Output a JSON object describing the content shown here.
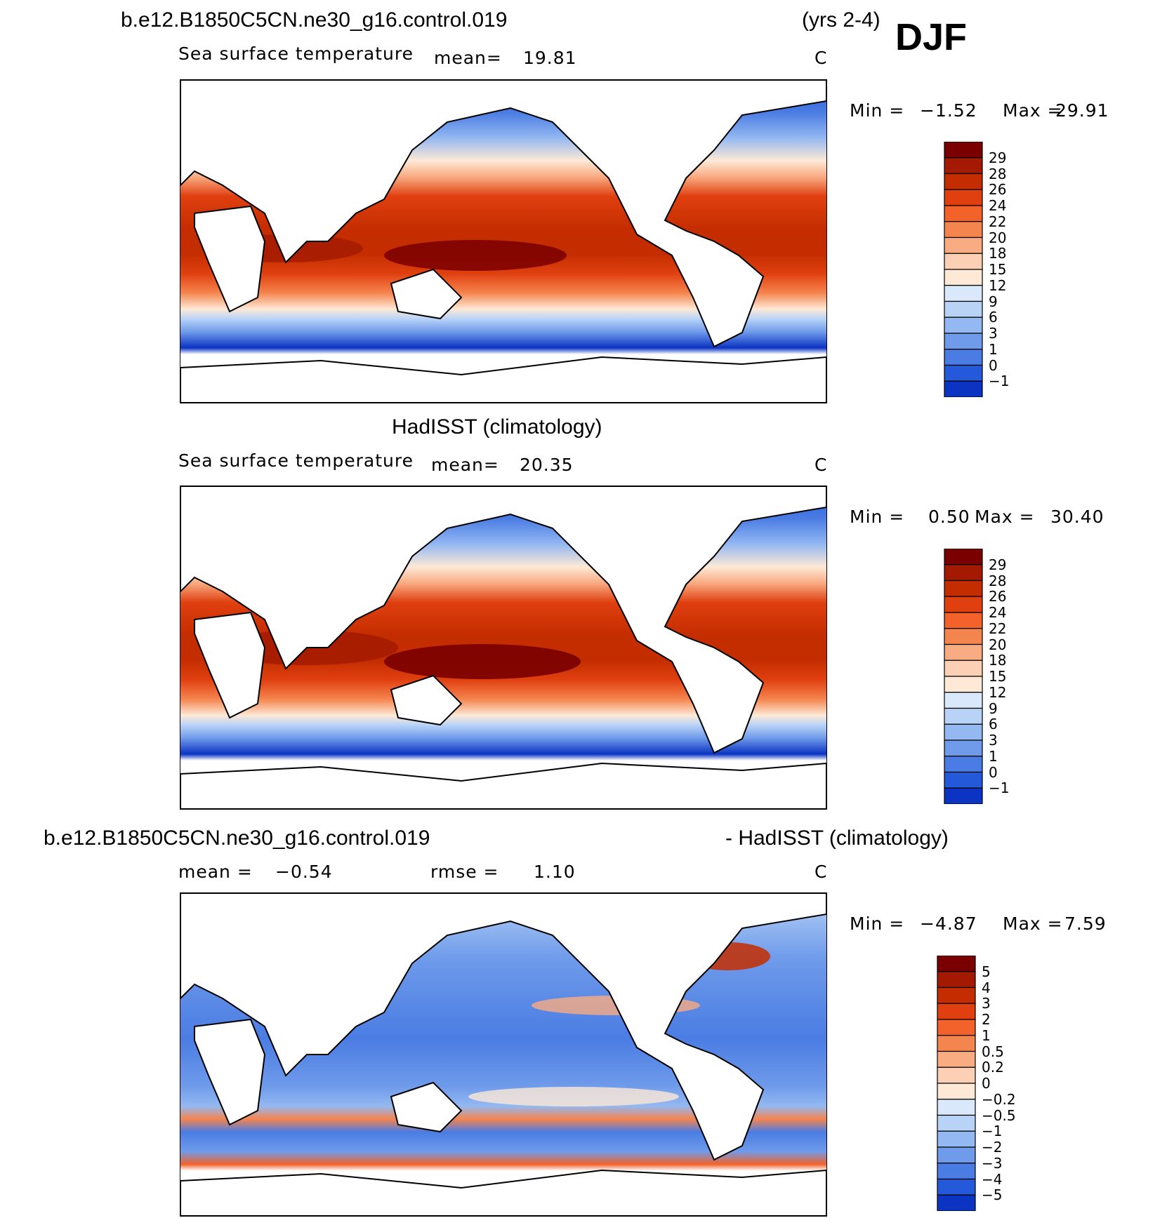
{
  "header": {
    "run_name": "b.e12.B1850C5CN.ne30_g16.control.019",
    "years": "(yrs 2-4)",
    "season": "DJF"
  },
  "panel1": {
    "field": "Sea surface temperature",
    "mean_label": "mean=",
    "mean_value": "19.81",
    "units": "C",
    "min_label": "Min =",
    "min_value": "−1.52",
    "max_label": "Max =",
    "max_value": "29.91",
    "colorbar_labels": [
      "29",
      "28",
      "26",
      "24",
      "22",
      "20",
      "18",
      "15",
      "12",
      "9",
      "6",
      "3",
      "1",
      "0",
      "−1"
    ],
    "colors": [
      "#7a0000",
      "#a31a00",
      "#c42d00",
      "#e04010",
      "#f2622a",
      "#f5854f",
      "#f9ab82",
      "#fbd0b4",
      "#fde9d6",
      "#d9e9fb",
      "#b9d3f7",
      "#94b8f1",
      "#6f9bea",
      "#4a7ce3",
      "#2459da",
      "#0b34c3",
      "#001f9a"
    ]
  },
  "panel2": {
    "title": "HadISST (climatology)",
    "field": "Sea surface temperature",
    "mean_label": "mean=",
    "mean_value": "20.35",
    "units": "C",
    "min_label": "Min =",
    "min_value": "0.50",
    "max_label": "Max =",
    "max_value": "30.40",
    "colorbar_labels": [
      "29",
      "28",
      "26",
      "24",
      "22",
      "20",
      "18",
      "15",
      "12",
      "9",
      "6",
      "3",
      "1",
      "0",
      "−1"
    ]
  },
  "panel3": {
    "title_left": "b.e12.B1850C5CN.ne30_g16.control.019",
    "title_right": "- HadISST (climatology)",
    "mean_label": "mean =",
    "mean_value": "−0.54",
    "rmse_label": "rmse =",
    "rmse_value": "1.10",
    "units": "C",
    "min_label": "Min =",
    "min_value": "−4.87",
    "max_label": "Max =",
    "max_value": "7.59",
    "colorbar_labels": [
      "5",
      "4",
      "3",
      "2",
      "1",
      "0.5",
      "0.2",
      "0",
      "−0.2",
      "−0.5",
      "−1",
      "−2",
      "−3",
      "−4",
      "−5"
    ]
  }
}
